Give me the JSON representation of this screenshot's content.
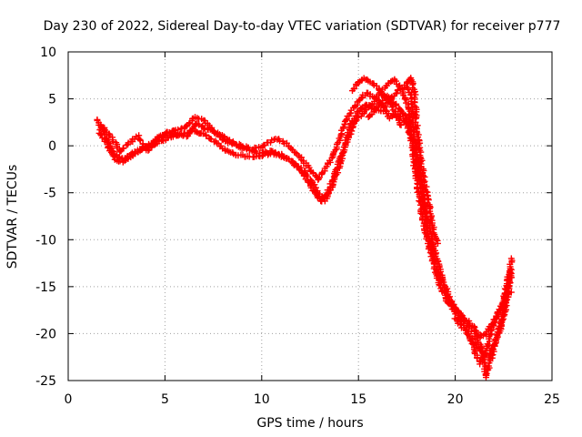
{
  "chart_data": {
    "type": "scatter",
    "title": "Day 230 of 2022, Sidereal Day-to-day VTEC variation (SDTVAR) for receiver p777",
    "xlabel": "GPS time / hours",
    "ylabel": "SDTVAR / TECUs",
    "xlim": [
      0,
      25
    ],
    "ylim": [
      -25,
      10
    ],
    "xticks": [
      0,
      5,
      10,
      15,
      20,
      25
    ],
    "yticks": [
      -25,
      -20,
      -15,
      -10,
      -5,
      0,
      5,
      10
    ],
    "grid": true,
    "marker": "+",
    "series": [
      {
        "name": "SDTVAR",
        "color": "#ff0000",
        "tracks": [
          [
            [
              1.5,
              2.8
            ],
            [
              1.8,
              1.6
            ],
            [
              2.1,
              0.2
            ],
            [
              2.4,
              -0.8
            ],
            [
              2.7,
              -1.5
            ],
            [
              3.0,
              -1.2
            ],
            [
              3.5,
              -0.6
            ],
            [
              4.0,
              -0.2
            ],
            [
              4.5,
              0.6
            ],
            [
              5.0,
              1.2
            ],
            [
              5.5,
              1.6
            ],
            [
              6.0,
              1.8
            ],
            [
              6.5,
              3.0
            ],
            [
              7.0,
              2.8
            ],
            [
              7.5,
              1.6
            ],
            [
              8.0,
              0.6
            ],
            [
              8.5,
              0.2
            ],
            [
              9.0,
              -0.2
            ],
            [
              9.5,
              -0.6
            ],
            [
              10.0,
              -0.8
            ],
            [
              10.5,
              -0.6
            ],
            [
              11.0,
              -0.9
            ],
            [
              11.5,
              -1.6
            ],
            [
              12.0,
              -2.6
            ],
            [
              12.4,
              -3.8
            ],
            [
              12.8,
              -5.2
            ],
            [
              13.1,
              -6.0
            ],
            [
              13.4,
              -5.0
            ],
            [
              13.8,
              -3.0
            ],
            [
              14.2,
              -0.6
            ],
            [
              14.6,
              2.2
            ],
            [
              15.0,
              3.8
            ],
            [
              15.4,
              4.4
            ],
            [
              15.8,
              4.0
            ],
            [
              16.2,
              3.6
            ],
            [
              16.6,
              4.8
            ],
            [
              17.0,
              5.8
            ],
            [
              17.4,
              6.4
            ],
            [
              17.7,
              5.6
            ],
            [
              17.9,
              1.0
            ],
            [
              18.2,
              -3.0
            ],
            [
              18.5,
              -7.0
            ],
            [
              18.9,
              -10.8
            ],
            [
              19.3,
              -14.0
            ],
            [
              19.7,
              -16.2
            ],
            [
              20.1,
              -17.6
            ],
            [
              20.6,
              -18.6
            ],
            [
              21.0,
              -19.4
            ],
            [
              21.3,
              -20.4
            ],
            [
              21.6,
              -20.0
            ],
            [
              22.0,
              -18.6
            ],
            [
              22.4,
              -17.0
            ],
            [
              22.7,
              -14.6
            ],
            [
              22.9,
              -12.0
            ]
          ],
          [
            [
              1.6,
              1.6
            ],
            [
              2.0,
              0.2
            ],
            [
              2.4,
              -1.4
            ],
            [
              2.8,
              -1.8
            ],
            [
              3.2,
              -1.2
            ],
            [
              3.7,
              -0.4
            ],
            [
              4.2,
              0.0
            ],
            [
              4.7,
              0.4
            ],
            [
              5.2,
              0.8
            ],
            [
              5.8,
              1.2
            ],
            [
              6.4,
              1.6
            ],
            [
              7.0,
              1.2
            ],
            [
              7.6,
              0.4
            ],
            [
              8.2,
              -0.6
            ],
            [
              8.8,
              -1.0
            ],
            [
              9.4,
              -1.2
            ],
            [
              10.0,
              -1.0
            ],
            [
              10.6,
              -0.8
            ],
            [
              11.2,
              -1.2
            ],
            [
              11.8,
              -2.0
            ],
            [
              12.3,
              -3.0
            ],
            [
              12.7,
              -4.2
            ],
            [
              13.0,
              -5.4
            ],
            [
              13.3,
              -5.8
            ],
            [
              13.7,
              -4.0
            ],
            [
              14.1,
              -1.6
            ],
            [
              14.5,
              1.0
            ],
            [
              14.9,
              2.8
            ],
            [
              15.3,
              3.6
            ],
            [
              15.7,
              4.4
            ],
            [
              16.1,
              5.6
            ],
            [
              16.5,
              6.6
            ],
            [
              16.9,
              7.0
            ],
            [
              17.3,
              5.8
            ],
            [
              17.6,
              4.0
            ],
            [
              17.8,
              -1.0
            ],
            [
              18.1,
              -5.0
            ],
            [
              18.4,
              -8.8
            ],
            [
              18.8,
              -12.0
            ],
            [
              19.2,
              -14.8
            ],
            [
              19.6,
              -16.6
            ],
            [
              20.0,
              -17.8
            ],
            [
              20.4,
              -18.8
            ],
            [
              20.8,
              -20.6
            ],
            [
              21.1,
              -22.4
            ],
            [
              21.3,
              -23.2
            ],
            [
              21.6,
              -21.8
            ],
            [
              21.9,
              -19.6
            ],
            [
              22.3,
              -17.6
            ],
            [
              22.6,
              -15.8
            ],
            [
              22.9,
              -15.6
            ]
          ],
          [
            [
              1.7,
              2.2
            ],
            [
              2.2,
              1.0
            ],
            [
              2.7,
              -0.6
            ],
            [
              3.2,
              0.4
            ],
            [
              3.6,
              1.0
            ],
            [
              4.1,
              -0.6
            ],
            [
              4.6,
              0.8
            ],
            [
              5.1,
              1.4
            ],
            [
              5.6,
              1.2
            ],
            [
              6.1,
              1.0
            ],
            [
              6.6,
              2.4
            ],
            [
              7.1,
              1.8
            ],
            [
              7.7,
              1.4
            ],
            [
              8.3,
              0.6
            ],
            [
              8.9,
              0.0
            ],
            [
              9.5,
              -0.4
            ],
            [
              10.1,
              0.0
            ],
            [
              10.7,
              0.8
            ],
            [
              11.3,
              0.2
            ],
            [
              11.9,
              -1.0
            ],
            [
              12.4,
              -2.2
            ],
            [
              12.9,
              -3.6
            ],
            [
              13.3,
              -2.4
            ],
            [
              13.7,
              -1.0
            ],
            [
              14.0,
              0.6
            ],
            [
              14.3,
              2.4
            ],
            [
              14.6,
              3.6
            ],
            [
              15.0,
              4.8
            ],
            [
              15.4,
              5.6
            ],
            [
              15.8,
              5.2
            ],
            [
              16.2,
              4.6
            ],
            [
              16.6,
              3.0
            ],
            [
              17.0,
              3.4
            ],
            [
              17.4,
              2.6
            ],
            [
              17.8,
              0.6
            ],
            [
              18.0,
              -2.0
            ],
            [
              18.3,
              -5.6
            ],
            [
              18.6,
              -9.2
            ],
            [
              19.0,
              -12.6
            ],
            [
              19.4,
              -15.2
            ],
            [
              19.8,
              -16.8
            ],
            [
              20.3,
              -18.0
            ],
            [
              20.7,
              -19.2
            ],
            [
              21.0,
              -20.0
            ],
            [
              21.4,
              -21.6
            ],
            [
              21.6,
              -24.6
            ],
            [
              21.9,
              -22.4
            ],
            [
              22.2,
              -20.0
            ],
            [
              22.6,
              -17.4
            ],
            [
              22.9,
              -13.6
            ]
          ],
          [
            [
              15.5,
              3.0
            ],
            [
              16.0,
              4.2
            ],
            [
              16.4,
              5.4
            ],
            [
              16.8,
              4.6
            ],
            [
              17.1,
              4.0
            ],
            [
              17.5,
              3.0
            ],
            [
              17.7,
              2.0
            ]
          ],
          [
            [
              14.7,
              5.8
            ],
            [
              15.0,
              6.8
            ],
            [
              15.3,
              7.2
            ],
            [
              15.6,
              6.8
            ],
            [
              16.0,
              6.2
            ],
            [
              16.3,
              5.4
            ],
            [
              16.7,
              4.4
            ],
            [
              17.0,
              3.0
            ],
            [
              17.2,
              2.2
            ]
          ],
          [
            [
              17.5,
              6.6
            ],
            [
              17.7,
              7.2
            ],
            [
              17.9,
              5.8
            ],
            [
              18.0,
              2.4
            ],
            [
              18.2,
              -1.2
            ],
            [
              18.5,
              -4.8
            ],
            [
              18.8,
              -8.2
            ],
            [
              19.1,
              -10.4
            ]
          ],
          [
            [
              20.0,
              -18.4
            ],
            [
              20.5,
              -19.6
            ],
            [
              21.0,
              -21.0
            ],
            [
              21.3,
              -21.8
            ],
            [
              21.7,
              -22.4
            ],
            [
              22.0,
              -21.2
            ],
            [
              22.3,
              -19.8
            ],
            [
              22.6,
              -16.6
            ],
            [
              22.9,
              -13.2
            ]
          ]
        ]
      }
    ]
  }
}
